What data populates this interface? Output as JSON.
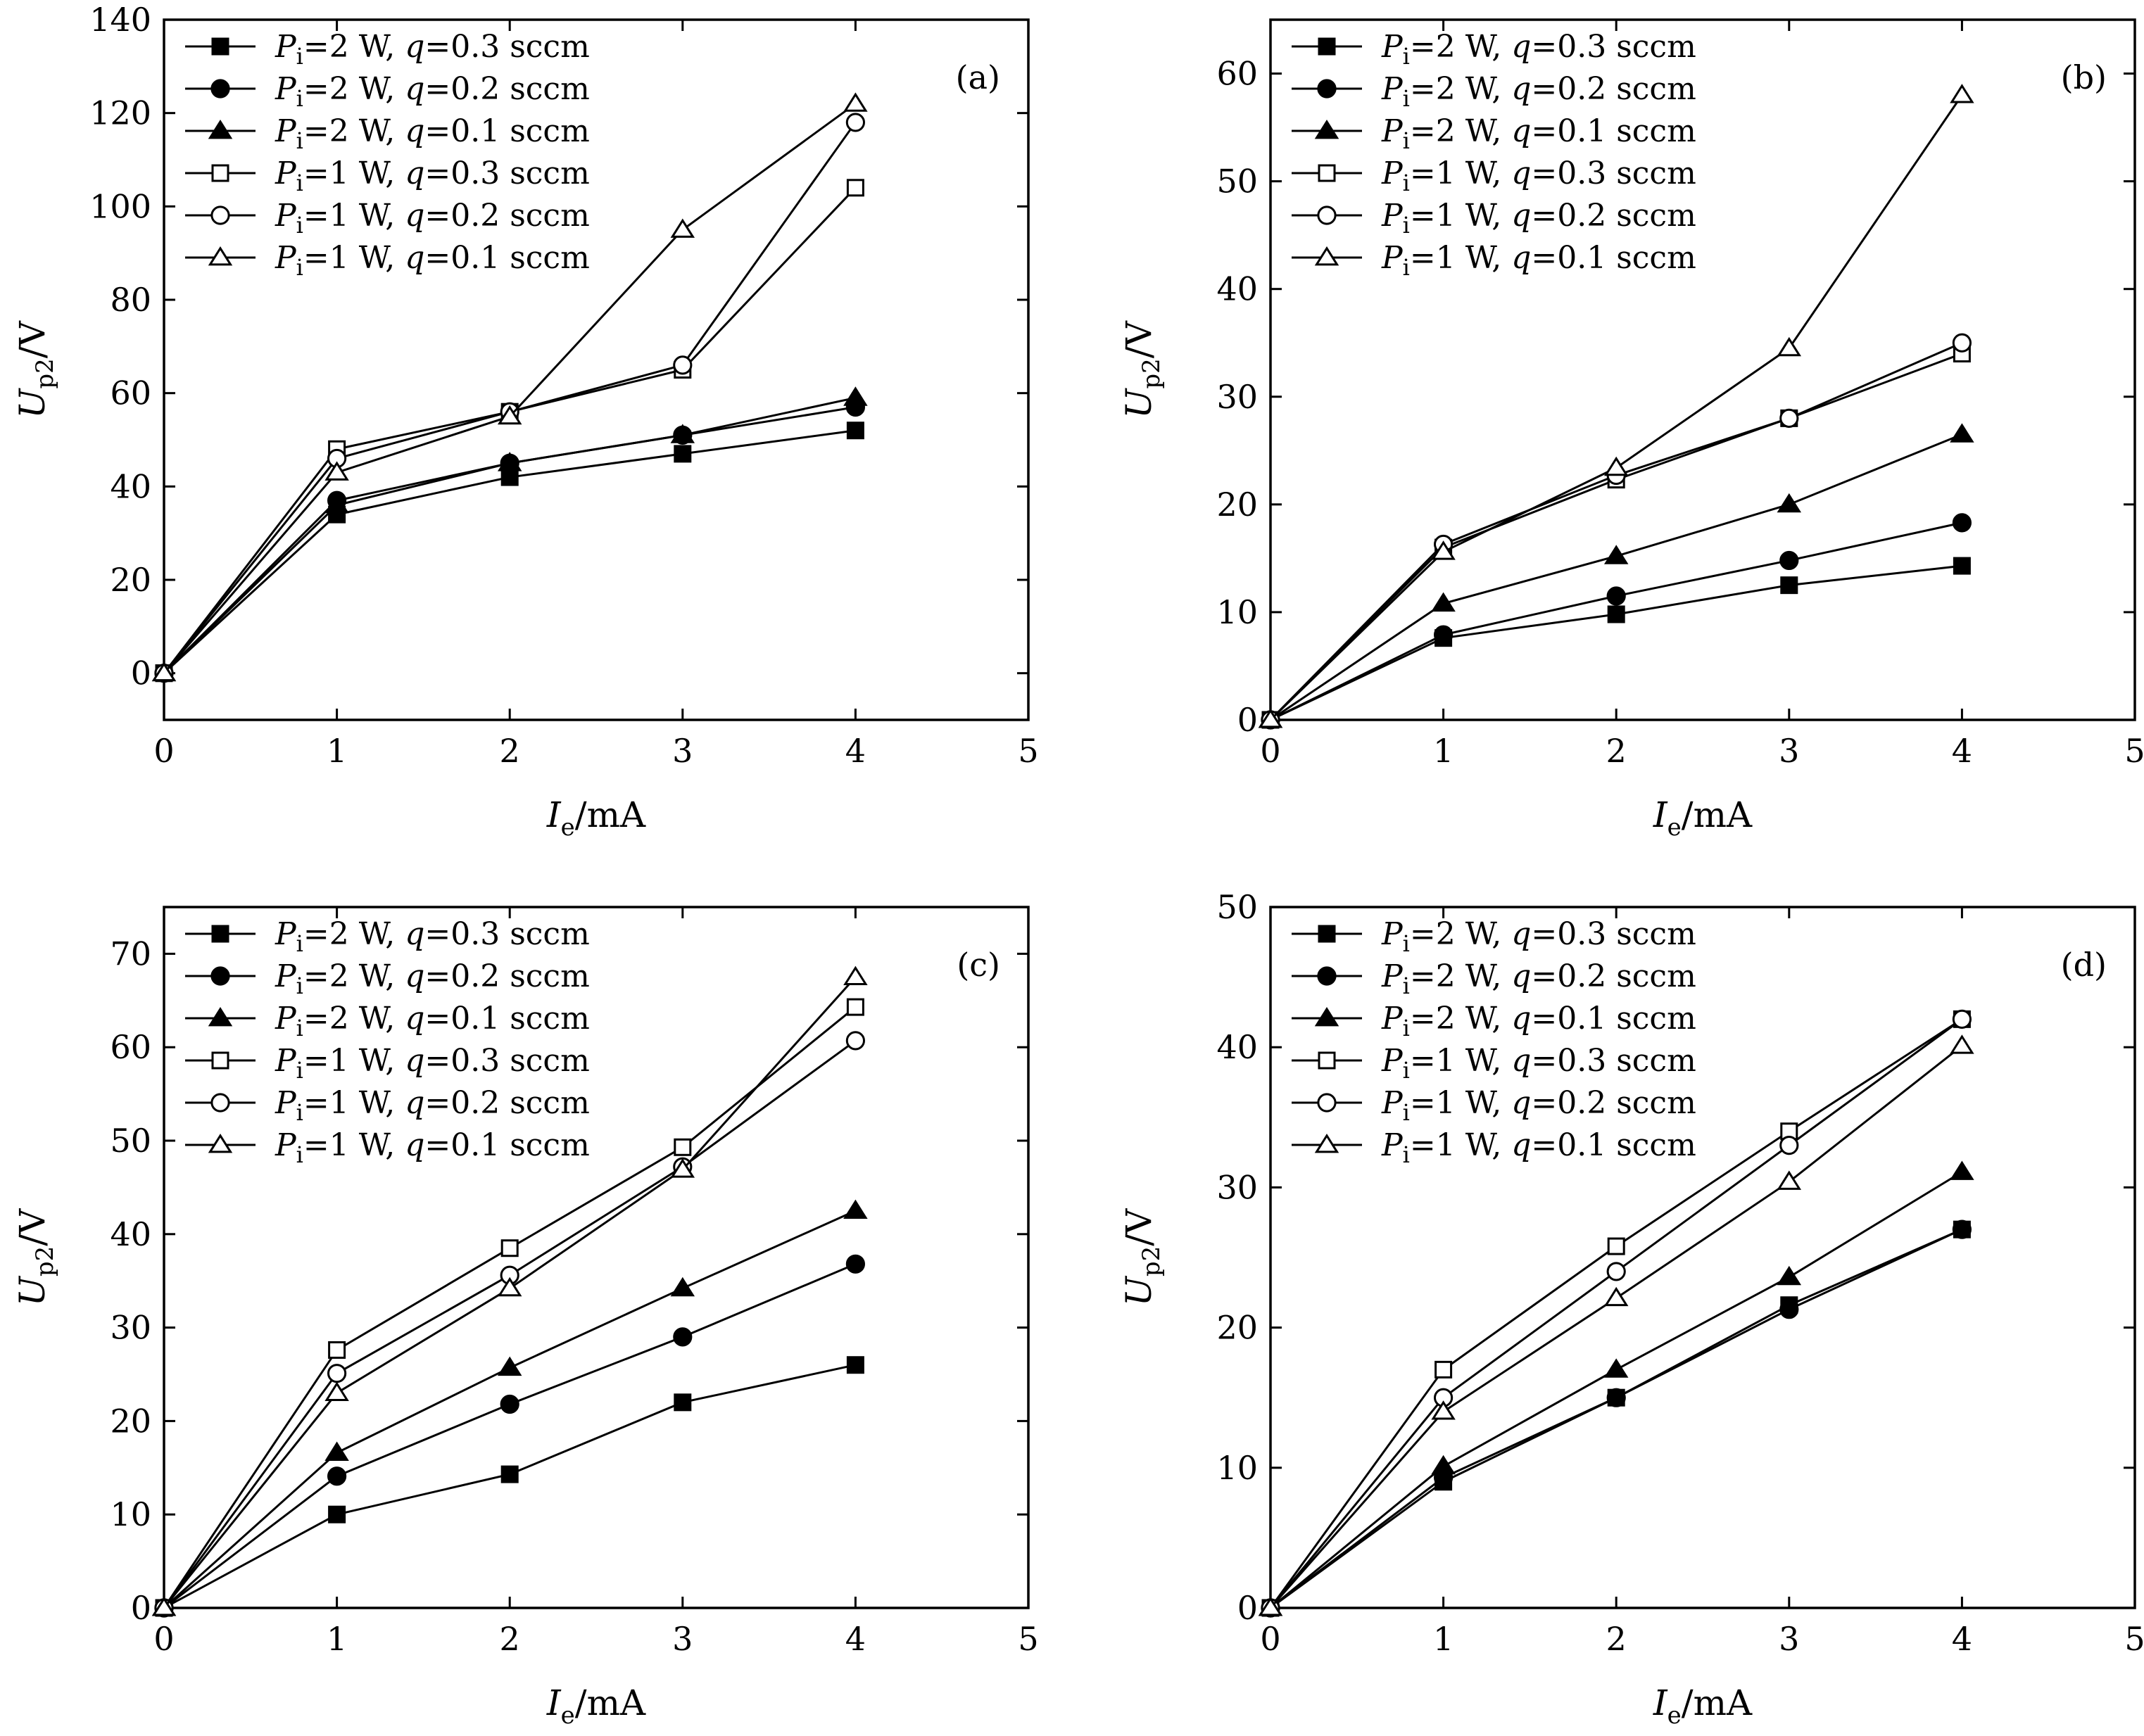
{
  "legend": [
    {
      "marker": "filled-square",
      "p": "P",
      "p_sub": "i",
      "p_val": "=2 W, ",
      "q": "q",
      "q_val": "=0.3 sccm"
    },
    {
      "marker": "filled-circle",
      "p": "P",
      "p_sub": "i",
      "p_val": "=2 W, ",
      "q": "q",
      "q_val": "=0.2 sccm"
    },
    {
      "marker": "filled-triangle",
      "p": "P",
      "p_sub": "i",
      "p_val": "=2 W, ",
      "q": "q",
      "q_val": "=0.1 sccm"
    },
    {
      "marker": "open-square",
      "p": "P",
      "p_sub": "i",
      "p_val": "=1 W, ",
      "q": "q",
      "q_val": "=0.3 sccm"
    },
    {
      "marker": "open-circle",
      "p": "P",
      "p_sub": "i",
      "p_val": "=1 W, ",
      "q": "q",
      "q_val": "=0.2 sccm"
    },
    {
      "marker": "open-triangle",
      "p": "P",
      "p_sub": "i",
      "p_val": "=1 W, ",
      "q": "q",
      "q_val": "=0.1 sccm"
    }
  ],
  "axis_text": {
    "x_main": "I",
    "x_sub": "e",
    "x_unit": "/mA",
    "y_main": "U",
    "y_sub": "p2",
    "y_unit": "/V"
  },
  "colors": {
    "line": "#000000",
    "background": "#ffffff"
  },
  "chart_data": [
    {
      "type": "line",
      "panel_label": "(a)",
      "x": [
        0,
        1,
        2,
        3,
        4
      ],
      "xlim": [
        0,
        5
      ],
      "xticks": [
        0,
        1,
        2,
        3,
        4,
        5
      ],
      "ylim": [
        -10,
        140
      ],
      "yticks": [
        0,
        20,
        40,
        60,
        80,
        100,
        120,
        140
      ],
      "grid": false,
      "legend_position": "top-left",
      "series": [
        {
          "name": "Pi=2 W, q=0.3 sccm",
          "marker": "filled-square",
          "values": [
            0,
            34,
            42,
            47,
            52
          ]
        },
        {
          "name": "Pi=2 W, q=0.2 sccm",
          "marker": "filled-circle",
          "values": [
            0,
            37,
            45,
            51,
            57
          ]
        },
        {
          "name": "Pi=2 W, q=0.1 sccm",
          "marker": "filled-triangle",
          "values": [
            0,
            36,
            45,
            51,
            59
          ]
        },
        {
          "name": "Pi=1 W, q=0.3 sccm",
          "marker": "open-square",
          "values": [
            0,
            48,
            56,
            65,
            104
          ]
        },
        {
          "name": "Pi=1 W, q=0.2 sccm",
          "marker": "open-circle",
          "values": [
            0,
            46,
            56,
            66,
            118
          ]
        },
        {
          "name": "Pi=1 W, q=0.1 sccm",
          "marker": "open-triangle",
          "values": [
            0,
            43,
            55,
            95,
            122
          ]
        }
      ]
    },
    {
      "type": "line",
      "panel_label": "(b)",
      "x": [
        0,
        1,
        2,
        3,
        4
      ],
      "xlim": [
        0,
        5
      ],
      "xticks": [
        0,
        1,
        2,
        3,
        4,
        5
      ],
      "ylim": [
        0,
        65
      ],
      "yticks": [
        0,
        10,
        20,
        30,
        40,
        50,
        60
      ],
      "grid": false,
      "legend_position": "top-left",
      "series": [
        {
          "name": "Pi=2 W, q=0.3 sccm",
          "marker": "filled-square",
          "values": [
            0,
            7.6,
            9.8,
            12.5,
            14.3
          ]
        },
        {
          "name": "Pi=2 W, q=0.2 sccm",
          "marker": "filled-circle",
          "values": [
            0,
            7.9,
            11.5,
            14.8,
            18.3
          ]
        },
        {
          "name": "Pi=2 W, q=0.1 sccm",
          "marker": "filled-triangle",
          "values": [
            0,
            10.8,
            15.2,
            20,
            26.5
          ]
        },
        {
          "name": "Pi=1 W, q=0.3 sccm",
          "marker": "open-square",
          "values": [
            0,
            16,
            22.3,
            28,
            34
          ]
        },
        {
          "name": "Pi=1 W, q=0.2 sccm",
          "marker": "open-circle",
          "values": [
            0,
            16.3,
            22.7,
            28,
            35
          ]
        },
        {
          "name": "Pi=1 W, q=0.1 sccm",
          "marker": "open-triangle",
          "values": [
            0,
            15.6,
            23.4,
            34.5,
            58
          ]
        }
      ]
    },
    {
      "type": "line",
      "panel_label": "(c)",
      "x": [
        0,
        1,
        2,
        3,
        4
      ],
      "xlim": [
        0,
        5
      ],
      "xticks": [
        0,
        1,
        2,
        3,
        4,
        5
      ],
      "ylim": [
        0,
        75
      ],
      "yticks": [
        0,
        10,
        20,
        30,
        40,
        50,
        60,
        70
      ],
      "grid": false,
      "legend_position": "top-left",
      "series": [
        {
          "name": "Pi=2 W, q=0.3 sccm",
          "marker": "filled-square",
          "values": [
            0,
            10,
            14.3,
            22,
            26
          ]
        },
        {
          "name": "Pi=2 W, q=0.2 sccm",
          "marker": "filled-circle",
          "values": [
            0,
            14.1,
            21.8,
            29,
            36.8
          ]
        },
        {
          "name": "Pi=2 W, q=0.1 sccm",
          "marker": "filled-triangle",
          "values": [
            0,
            16.6,
            25.7,
            34.2,
            42.5
          ]
        },
        {
          "name": "Pi=1 W, q=0.3 sccm",
          "marker": "open-square",
          "values": [
            0,
            27.6,
            38.5,
            49.3,
            64.3
          ]
        },
        {
          "name": "Pi=1 W, q=0.2 sccm",
          "marker": "open-circle",
          "values": [
            0,
            25.1,
            35.6,
            47.2,
            60.7
          ]
        },
        {
          "name": "Pi=1 W, q=0.1 sccm",
          "marker": "open-triangle",
          "values": [
            0,
            23,
            34.2,
            46.9,
            67.5
          ]
        }
      ]
    },
    {
      "type": "line",
      "panel_label": "(d)",
      "x": [
        0,
        1,
        2,
        3,
        4
      ],
      "xlim": [
        0,
        5
      ],
      "xticks": [
        0,
        1,
        2,
        3,
        4,
        5
      ],
      "ylim": [
        0,
        50
      ],
      "yticks": [
        0,
        10,
        20,
        30,
        40,
        50
      ],
      "grid": false,
      "legend_position": "top-left",
      "series": [
        {
          "name": "Pi=2 W, q=0.3 sccm",
          "marker": "filled-square",
          "values": [
            0,
            9,
            15,
            21.6,
            27
          ]
        },
        {
          "name": "Pi=2 W, q=0.2 sccm",
          "marker": "filled-circle",
          "values": [
            0,
            9.3,
            15,
            21.3,
            27
          ]
        },
        {
          "name": "Pi=2 W, q=0.1 sccm",
          "marker": "filled-triangle",
          "values": [
            0,
            10.1,
            17,
            23.6,
            31.1
          ]
        },
        {
          "name": "Pi=1 W, q=0.3 sccm",
          "marker": "open-square",
          "values": [
            0,
            17,
            25.8,
            34,
            42
          ]
        },
        {
          "name": "Pi=1 W, q=0.2 sccm",
          "marker": "open-circle",
          "values": [
            0,
            15,
            24,
            33,
            42
          ]
        },
        {
          "name": "Pi=1 W, q=0.1 sccm",
          "marker": "open-triangle",
          "values": [
            0,
            14,
            22.1,
            30.4,
            40.1
          ]
        }
      ]
    }
  ]
}
